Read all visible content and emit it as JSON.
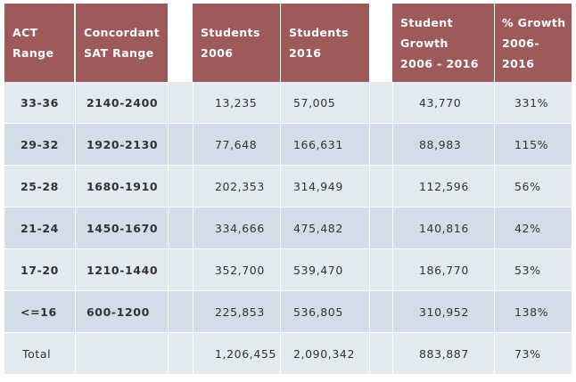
{
  "headers": {
    "act_range": [
      "ACT",
      "Range"
    ],
    "sat_range": [
      "Concordant",
      "SAT Range"
    ],
    "students_2006": [
      "Students",
      "2006"
    ],
    "students_2016": [
      "Students",
      "2016"
    ],
    "student_growth": [
      "Student",
      "Growth",
      "2006 - 2016"
    ],
    "pct_growth": [
      "% Growth",
      "2006-",
      "2016"
    ]
  },
  "rows": [
    {
      "act": "33-36",
      "sat": "2140-2400",
      "s2006": "13,235",
      "s2016": "57,005",
      "growth": "43,770",
      "pct": "331%"
    },
    {
      "act": "29-32",
      "sat": "1920-2130",
      "s2006": "77,648",
      "s2016": "166,631",
      "growth": "88,983",
      "pct": "115%"
    },
    {
      "act": "25-28",
      "sat": "1680-1910",
      "s2006": "202,353",
      "s2016": "314,949",
      "growth": "112,596",
      "pct": "56%"
    },
    {
      "act": "21-24",
      "sat": "1450-1670",
      "s2006": "334,666",
      "s2016": "475,482",
      "growth": "140,816",
      "pct": "42%"
    },
    {
      "act": "17-20",
      "sat": "1210-1440",
      "s2006": "352,700",
      "s2016": "539,470",
      "growth": "186,770",
      "pct": "53%"
    },
    {
      "act": "<=16",
      "sat": "600-1200",
      "s2006": "225,853",
      "s2016": "536,805",
      "growth": "310,952",
      "pct": "138%"
    },
    {
      "act": "Total",
      "sat": "",
      "s2006": "1,206,455",
      "s2016": "2,090,342",
      "growth": "883,887",
      "pct": "73%"
    }
  ],
  "colors": {
    "header_bg": "#9e5a5b",
    "row_dark": "#d3dde9",
    "row_light": "#e3e9f1",
    "total_row": "#e4eaf2"
  }
}
